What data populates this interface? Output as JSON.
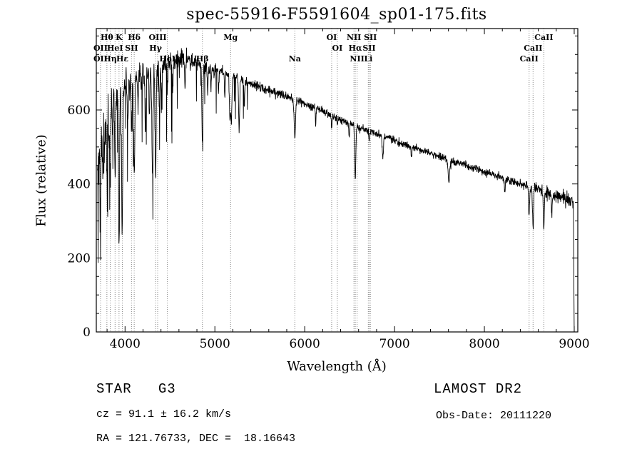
{
  "title": "spec-55916-F5591604_sp01-175.fits",
  "annotations": {
    "object_type": "STAR   G3",
    "survey": "LAMOST DR2",
    "cz": "cz = 91.1 ± 16.2 km/s",
    "obs_date": "Obs-Date: 20111220",
    "ra_dec": "RA = 121.76733, DEC =  18.16643"
  },
  "chart_data": {
    "type": "line",
    "title": "spec-55916-F5591604_sp01-175.fits",
    "xlabel": "Wavelength (Å)",
    "ylabel": "Flux (relative)",
    "xlim": [
      3680,
      9040
    ],
    "ylim": [
      0,
      820
    ],
    "x_major_ticks": [
      4000,
      5000,
      6000,
      7000,
      8000,
      9000
    ],
    "x_minor_step": 200,
    "y_major_ticks": [
      0,
      200,
      400,
      600
    ],
    "y_minor_step": 50,
    "grid": false,
    "series_color": "#000000",
    "marker_line_color": "#888888",
    "continuum_points": {
      "x": [
        3690,
        3730,
        3780,
        3830,
        3880,
        3930,
        3980,
        4050,
        4150,
        4250,
        4350,
        4450,
        4550,
        4650,
        4750,
        4850,
        4950,
        5050,
        5150,
        5250,
        5350,
        5450,
        5550,
        5650,
        5750,
        5850,
        5950,
        6050,
        6150,
        6250,
        6350,
        6450,
        6550,
        6650,
        6750,
        6850,
        6950,
        7050,
        7150,
        7250,
        7350,
        7450,
        7550,
        7650,
        7750,
        7850,
        7950,
        8050,
        8150,
        8250,
        8350,
        8450,
        8550,
        8650,
        8750,
        8850,
        8950,
        8995
      ],
      "y": [
        430,
        545,
        595,
        618,
        638,
        648,
        655,
        668,
        692,
        702,
        712,
        722,
        730,
        737,
        733,
        722,
        712,
        705,
        694,
        686,
        677,
        666,
        656,
        649,
        641,
        633,
        623,
        613,
        603,
        591,
        579,
        569,
        559,
        549,
        539,
        531,
        523,
        513,
        504,
        496,
        488,
        479,
        469,
        461,
        453,
        445,
        437,
        429,
        420,
        412,
        404,
        397,
        389,
        381,
        373,
        364,
        356,
        351
      ]
    },
    "absorption_lines": [
      {
        "wavelength": 3727,
        "depth": 160,
        "sigma": 6
      },
      {
        "wavelength": 3750,
        "depth": 120,
        "sigma": 5
      },
      {
        "wavelength": 3770,
        "depth": 100,
        "sigma": 4
      },
      {
        "wavelength": 3798,
        "depth": 180,
        "sigma": 5
      },
      {
        "wavelength": 3820,
        "depth": 90,
        "sigma": 4
      },
      {
        "wavelength": 3835,
        "depth": 200,
        "sigma": 5
      },
      {
        "wavelength": 3860,
        "depth": 90,
        "sigma": 4
      },
      {
        "wavelength": 3889,
        "depth": 230,
        "sigma": 5
      },
      {
        "wavelength": 3933,
        "depth": 390,
        "sigma": 6
      },
      {
        "wavelength": 3968,
        "depth": 360,
        "sigma": 6
      },
      {
        "wavelength": 4030,
        "depth": 100,
        "sigma": 5
      },
      {
        "wavelength": 4072,
        "depth": 110,
        "sigma": 4
      },
      {
        "wavelength": 4102,
        "depth": 280,
        "sigma": 6
      },
      {
        "wavelength": 4144,
        "depth": 90,
        "sigma": 4
      },
      {
        "wavelength": 4227,
        "depth": 150,
        "sigma": 5
      },
      {
        "wavelength": 4271,
        "depth": 110,
        "sigma": 4
      },
      {
        "wavelength": 4305,
        "depth": 260,
        "sigma": 7
      },
      {
        "wavelength": 4340,
        "depth": 280,
        "sigma": 6
      },
      {
        "wavelength": 4383,
        "depth": 140,
        "sigma": 5
      },
      {
        "wavelength": 4405,
        "depth": 100,
        "sigma": 4
      },
      {
        "wavelength": 4471,
        "depth": 70,
        "sigma": 4
      },
      {
        "wavelength": 4530,
        "depth": 80,
        "sigma": 5
      },
      {
        "wavelength": 4668,
        "depth": 80,
        "sigma": 5
      },
      {
        "wavelength": 4861,
        "depth": 200,
        "sigma": 6
      },
      {
        "wavelength": 4920,
        "depth": 70,
        "sigma": 4
      },
      {
        "wavelength": 4957,
        "depth": 60,
        "sigma": 4
      },
      {
        "wavelength": 5041,
        "depth": 60,
        "sigma": 4
      },
      {
        "wavelength": 5110,
        "depth": 60,
        "sigma": 4
      },
      {
        "wavelength": 5167,
        "depth": 110,
        "sigma": 6
      },
      {
        "wavelength": 5183,
        "depth": 120,
        "sigma": 6
      },
      {
        "wavelength": 5270,
        "depth": 130,
        "sigma": 6
      },
      {
        "wavelength": 5328,
        "depth": 70,
        "sigma": 4
      },
      {
        "wavelength": 5890,
        "depth": 100,
        "sigma": 8
      },
      {
        "wavelength": 6122,
        "depth": 40,
        "sigma": 4
      },
      {
        "wavelength": 6300,
        "depth": 35,
        "sigma": 4
      },
      {
        "wavelength": 6363,
        "depth": 25,
        "sigma": 4
      },
      {
        "wavelength": 6495,
        "depth": 40,
        "sigma": 4
      },
      {
        "wavelength": 6563,
        "depth": 145,
        "sigma": 6
      },
      {
        "wavelength": 6717,
        "depth": 25,
        "sigma": 4
      },
      {
        "wavelength": 6870,
        "depth": 55,
        "sigma": 7
      },
      {
        "wavelength": 7190,
        "depth": 30,
        "sigma": 5
      },
      {
        "wavelength": 7605,
        "depth": 60,
        "sigma": 9
      },
      {
        "wavelength": 8227,
        "depth": 40,
        "sigma": 5
      },
      {
        "wavelength": 8498,
        "depth": 70,
        "sigma": 6
      },
      {
        "wavelength": 8542,
        "depth": 110,
        "sigma": 6
      },
      {
        "wavelength": 8662,
        "depth": 95,
        "sigma": 6
      },
      {
        "wavelength": 8750,
        "depth": 60,
        "sigma": 4
      }
    ],
    "spectral_markers": [
      {
        "label": "Hθ",
        "wavelength": 3798,
        "row": 0
      },
      {
        "label": "K",
        "wavelength": 3933,
        "row": 0
      },
      {
        "label": "Hδ",
        "wavelength": 4102,
        "row": 0
      },
      {
        "label": "OIII",
        "wavelength": 4363,
        "row": 0
      },
      {
        "label": "Mg",
        "wavelength": 5175,
        "row": 0
      },
      {
        "label": "OI",
        "wavelength": 6300,
        "row": 0
      },
      {
        "label": "NII",
        "wavelength": 6548,
        "row": 0
      },
      {
        "label": "SII",
        "wavelength": 6731,
        "row": 0
      },
      {
        "label": "CaII",
        "wavelength": 8662,
        "row": 0
      },
      {
        "label": "OII",
        "wavelength": 3727,
        "row": 1
      },
      {
        "label": "HeI",
        "wavelength": 3889,
        "row": 1
      },
      {
        "label": "SII",
        "wavelength": 4072,
        "row": 1
      },
      {
        "label": "Hγ",
        "wavelength": 4340,
        "row": 1
      },
      {
        "label": "OI",
        "wavelength": 6363,
        "row": 1
      },
      {
        "label": "Hα",
        "wavelength": 6563,
        "row": 1
      },
      {
        "label": "SII",
        "wavelength": 6717,
        "row": 1
      },
      {
        "label": "CaII",
        "wavelength": 8542,
        "row": 1
      },
      {
        "label": "OII",
        "wavelength": 3727,
        "row": 2
      },
      {
        "label": "Hη",
        "wavelength": 3835,
        "row": 2
      },
      {
        "label": "Hε",
        "wavelength": 3970,
        "row": 2
      },
      {
        "label": "HeI",
        "wavelength": 4471,
        "row": 2
      },
      {
        "label": "Hβ",
        "wavelength": 4861,
        "row": 2
      },
      {
        "label": "Na",
        "wavelength": 5890,
        "row": 2
      },
      {
        "label": "NII",
        "wavelength": 6583,
        "row": 2
      },
      {
        "label": "Li",
        "wavelength": 6708,
        "row": 2
      },
      {
        "label": "CaII",
        "wavelength": 8498,
        "row": 2
      }
    ]
  }
}
